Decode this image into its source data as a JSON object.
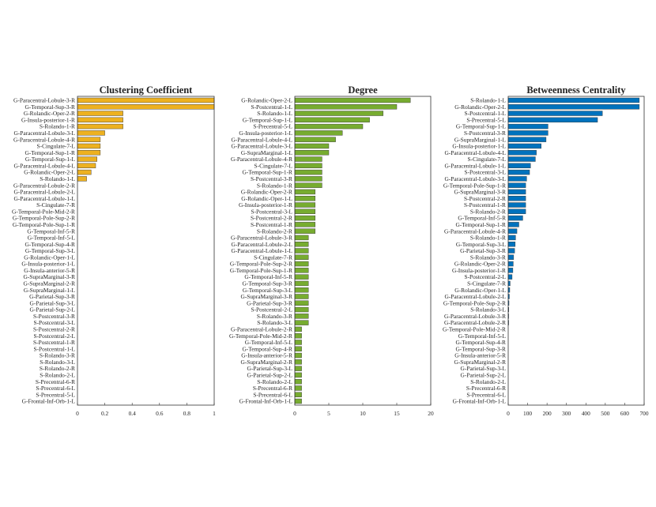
{
  "chart_data": [
    {
      "type": "bar",
      "orientation": "horizontal",
      "title": "Clustering Coefficient",
      "color": "#EDB120",
      "xlim": [
        0,
        1
      ],
      "xticks": [
        0,
        0.2,
        0.4,
        0.6,
        0.8,
        1
      ],
      "categories": [
        "G-Paracentral-Lobule-3-R",
        "G-Temporal-Sup-3-R",
        "G-Rolandic-Oper-2-R",
        "G-Insula-posterior-1-R",
        "S-Rolando-1-R",
        "G-Paracentral-Lobule-3-L",
        "G-Paracentral-Lobule-4-R",
        "S-Cingulate-7-L",
        "G-Temporal-Sup-1-R",
        "G-Temporal-Sup-1-L",
        "G-Paracentral-Lobule-4-L",
        "G-Rolandic-Oper-2-L",
        "S-Rolando-1-L",
        "G-Paracentral-Lobule-2-R",
        "G-Paracentral-Lobule-2-L",
        "G-Paracentral-Lobule-1-L",
        "S-Cingulate-7-R",
        "G-Temporal-Pole-Mid-2-R",
        "G-Temporal-Pole-Sup-2-R",
        "G-Temporal-Pole-Sup-1-R",
        "G-Temporal-Inf-5-R",
        "G-Temporal-Inf-5-L",
        "G-Temporal-Sup-4-R",
        "G-Temporal-Sup-3-L",
        "G-Rolandic-Oper-1-L",
        "G-Insula-posterior-1-L",
        "G-Insula-anterior-5-R",
        "G-SupraMarginal-3-R",
        "G-SupraMarginal-2-R",
        "G-SupraMarginal-1-L",
        "G-Parietal-Sup-3-R",
        "G-Parietal-Sup-3-L",
        "G-Parietal-Sup-2-L",
        "S-Postcentral-3-R",
        "S-Postcentral-3-L",
        "S-Postcentral-2-R",
        "S-Postcentral-2-L",
        "S-Postcentral-1-R",
        "S-Postcentral-1-L",
        "S-Rolando-3-R",
        "S-Rolando-3-L",
        "S-Rolando-2-R",
        "S-Rolando-2-L",
        "S-Precentral-6-R",
        "S-Precentral-6-L",
        "S-Precentral-5-L",
        "G-Frontal-Inf-Orb-1-L"
      ],
      "values": [
        1,
        1,
        0.333,
        0.333,
        0.333,
        0.2,
        0.167,
        0.167,
        0.167,
        0.143,
        0.133,
        0.1,
        0.067,
        0,
        0,
        0,
        0,
        0,
        0,
        0,
        0,
        0,
        0,
        0,
        0,
        0,
        0,
        0,
        0,
        0,
        0,
        0,
        0,
        0,
        0,
        0,
        0,
        0,
        0,
        0,
        0,
        0,
        0,
        0,
        0,
        0,
        0
      ]
    },
    {
      "type": "bar",
      "orientation": "horizontal",
      "title": "Degree",
      "color": "#77AC30",
      "xlim": [
        0,
        20
      ],
      "xticks": [
        0,
        5,
        10,
        15,
        20
      ],
      "categories": [
        "G-Rolandic-Oper-2-L",
        "S-Postcentral-1-L",
        "S-Rolando-1-L",
        "G-Temporal-Sup-1-L",
        "S-Precentral-5-L",
        "G-Insula-posterior-1-L",
        "G-Paracentral-Lobule-4-L",
        "G-Paracentral-Lobule-3-L",
        "G-SupraMarginal-1-L",
        "G-Paracentral-Lobule-4-R",
        "S-Cingulate-7-L",
        "G-Temporal-Sup-1-R",
        "S-Postcentral-3-R",
        "S-Rolando-1-R",
        "G-Rolandic-Oper-2-R",
        "G-Rolandic-Oper-1-L",
        "G-Insula-posterior-1-R",
        "S-Postcentral-3-L",
        "S-Postcentral-2-R",
        "S-Postcentral-1-R",
        "S-Rolando-2-R",
        "G-Paracentral-Lobule-3-R",
        "G-Paracentral-Lobule-2-L",
        "G-Paracentral-Lobule-1-L",
        "S-Cingulate-7-R",
        "G-Temporal-Pole-Sup-2-R",
        "G-Temporal-Pole-Sup-1-R",
        "G-Temporal-Inf-5-R",
        "G-Temporal-Sup-3-R",
        "G-Temporal-Sup-3-L",
        "G-SupraMarginal-3-R",
        "G-Parietal-Sup-3-R",
        "S-Postcentral-2-L",
        "S-Rolando-3-R",
        "S-Rolando-3-L",
        "G-Paracentral-Lobule-2-R",
        "G-Temporal-Pole-Mid-2-R",
        "G-Temporal-Inf-5-L",
        "G-Temporal-Sup-4-R",
        "G-Insula-anterior-5-R",
        "G-SupraMarginal-2-R",
        "G-Parietal-Sup-3-L",
        "G-Parietal-Sup-2-L",
        "S-Rolando-2-L",
        "S-Precentral-6-R",
        "S-Precentral-6-L",
        "G-Frontal-Inf-Orb-1-L"
      ],
      "values": [
        17,
        15,
        13,
        11,
        10,
        7,
        6,
        5,
        5,
        4,
        4,
        4,
        4,
        4,
        3,
        3,
        3,
        3,
        3,
        3,
        3,
        2,
        2,
        2,
        2,
        2,
        2,
        2,
        2,
        2,
        2,
        2,
        2,
        2,
        2,
        1,
        1,
        1,
        1,
        1,
        1,
        1,
        1,
        1,
        1,
        1,
        1
      ]
    },
    {
      "type": "bar",
      "orientation": "horizontal",
      "title": "Betweenness Centrality",
      "color": "#0072BD",
      "xlim": [
        0,
        700
      ],
      "xticks": [
        0,
        100,
        200,
        300,
        400,
        500,
        600,
        700
      ],
      "categories": [
        "S-Rolando-1-L",
        "G-Rolandic-Oper-2-L",
        "S-Postcentral-1-L",
        "S-Precentral-5-L",
        "G-Temporal-Sup-1-L",
        "S-Postcentral-3-R",
        "G-SupraMarginal-1-L",
        "G-Insula-posterior-1-L",
        "G-Paracentral-Lobule-4-L",
        "S-Cingulate-7-L",
        "G-Paracentral-Lobule-1-L",
        "S-Postcentral-3-L",
        "G-Paracentral-Lobule-3-L",
        "G-Temporal-Pole-Sup-1-R",
        "G-SupraMarginal-3-R",
        "S-Postcentral-2-R",
        "S-Postcentral-1-R",
        "S-Rolando-2-R",
        "G-Temporal-Inf-5-R",
        "G-Temporal-Sup-1-R",
        "G-Paracentral-Lobule-4-R",
        "S-Rolando-1-R",
        "G-Temporal-Sup-3-L",
        "G-Parietal-Sup-3-R",
        "S-Rolando-3-R",
        "G-Rolandic-Oper-2-R",
        "G-Insula-posterior-1-R",
        "S-Postcentral-2-L",
        "S-Cingulate-7-R",
        "G-Rolandic-Oper-1-L",
        "G-Paracentral-Lobule-2-L",
        "G-Temporal-Pole-Sup-2-R",
        "S-Rolando-3-L",
        "G-Paracentral-Lobule-3-R",
        "G-Paracentral-Lobule-2-R",
        "G-Temporal-Pole-Mid-2-R",
        "G-Temporal-Inf-5-L",
        "G-Temporal-Sup-4-R",
        "G-Temporal-Sup-3-R",
        "G-Insula-anterior-5-R",
        "G-SupraMarginal-2-R",
        "G-Parietal-Sup-3-L",
        "G-Parietal-Sup-2-L",
        "S-Rolando-2-L",
        "S-Precentral-6-R",
        "S-Precentral-6-L",
        "G-Frontal-Inf-Orb-1-L"
      ],
      "values": [
        675,
        675,
        485,
        460,
        205,
        205,
        195,
        170,
        145,
        140,
        115,
        110,
        95,
        90,
        90,
        90,
        90,
        90,
        75,
        55,
        45,
        38,
        36,
        33,
        28,
        26,
        24,
        20,
        10,
        8,
        6,
        4,
        3,
        2,
        1,
        0,
        0,
        0,
        0,
        0,
        0,
        0,
        0,
        0,
        0,
        0,
        0
      ]
    }
  ]
}
